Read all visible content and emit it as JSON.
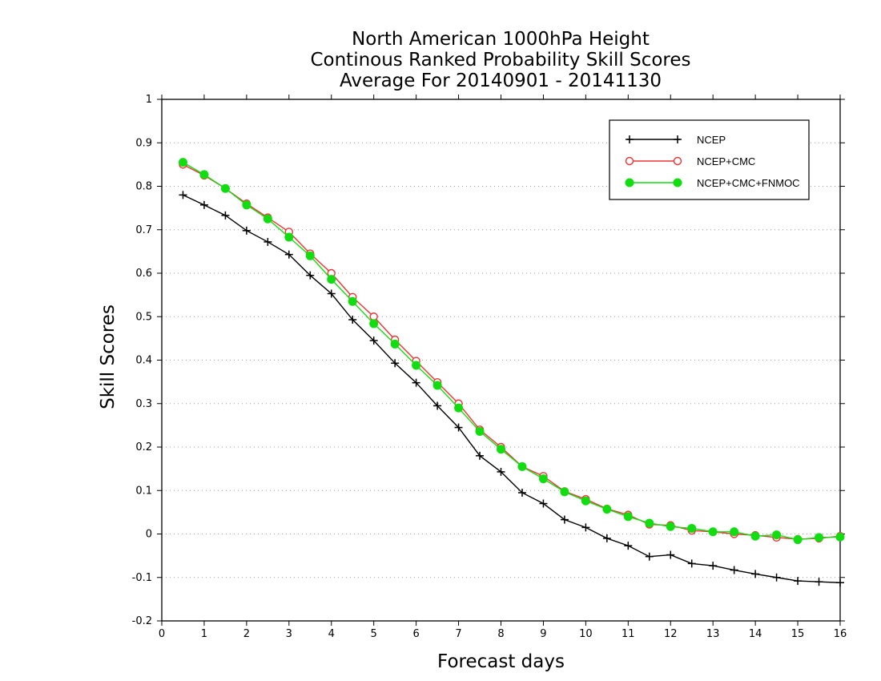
{
  "chart_data": {
    "type": "line",
    "title": [
      "North American 1000hPa Height",
      "Continous Ranked Probability Skill Scores",
      "Average For 20140901 - 20141130"
    ],
    "xlabel": "Forecast days",
    "ylabel": "Skill Scores",
    "xlim": [
      0,
      16
    ],
    "ylim": [
      -0.2,
      1
    ],
    "xticks": [
      0,
      1,
      2,
      3,
      4,
      5,
      6,
      7,
      8,
      9,
      10,
      11,
      12,
      13,
      14,
      15,
      16
    ],
    "yticks": [
      -0.2,
      -0.1,
      0,
      0.1,
      0.2,
      0.3,
      0.4,
      0.5,
      0.6,
      0.7,
      0.8,
      0.9,
      1
    ],
    "ytick_labels": [
      "-0.2",
      "-0.1",
      "0",
      "0.1",
      "0.2",
      "0.3",
      "0.4",
      "0.5",
      "0.6",
      "0.7",
      "0.8",
      "0.9",
      "1"
    ],
    "grid": "horizontal dotted",
    "legend_position": "top-right",
    "x": [
      0.5,
      1,
      1.5,
      2,
      2.5,
      3,
      3.5,
      4,
      4.5,
      5,
      5.5,
      6,
      6.5,
      7,
      7.5,
      8,
      8.5,
      9,
      9.5,
      10,
      10.5,
      11,
      11.5,
      12,
      12.5,
      13,
      13.5,
      14,
      14.5,
      15,
      15.5,
      16
    ],
    "series": [
      {
        "name": "NCEP",
        "color": "#000000",
        "marker": "plus",
        "values": [
          0.78,
          0.757,
          0.733,
          0.698,
          0.672,
          0.643,
          0.595,
          0.553,
          0.493,
          0.445,
          0.393,
          0.348,
          0.295,
          0.245,
          0.18,
          0.143,
          0.095,
          0.07,
          0.033,
          0.015,
          -0.01,
          -0.027,
          -0.052,
          -0.048,
          -0.068,
          -0.073,
          -0.083,
          -0.092,
          -0.1,
          -0.108,
          -0.11,
          -0.112
        ]
      },
      {
        "name": "NCEP+CMC",
        "color": "#ee3333",
        "marker": "open-circle",
        "values": [
          0.85,
          0.825,
          0.795,
          0.76,
          0.728,
          0.695,
          0.645,
          0.6,
          0.545,
          0.5,
          0.447,
          0.398,
          0.349,
          0.3,
          0.24,
          0.2,
          0.155,
          0.133,
          0.098,
          0.08,
          0.058,
          0.044,
          0.022,
          0.02,
          0.008,
          0.005,
          0.0,
          -0.003,
          -0.008,
          -0.012,
          -0.01,
          -0.005
        ]
      },
      {
        "name": "NCEP+CMC+FNMOC",
        "color": "#11dd11",
        "marker": "filled-circle",
        "values": [
          0.855,
          0.827,
          0.795,
          0.757,
          0.725,
          0.683,
          0.64,
          0.586,
          0.535,
          0.484,
          0.437,
          0.388,
          0.342,
          0.29,
          0.236,
          0.195,
          0.155,
          0.127,
          0.097,
          0.076,
          0.057,
          0.04,
          0.025,
          0.017,
          0.013,
          0.005,
          0.005,
          -0.005,
          -0.002,
          -0.013,
          -0.008,
          -0.007
        ]
      }
    ]
  }
}
